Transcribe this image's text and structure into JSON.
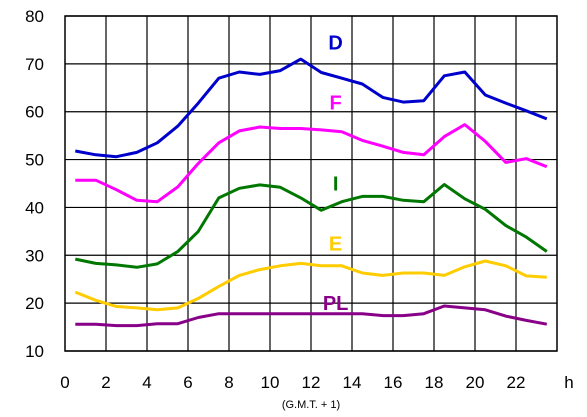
{
  "chart_data": {
    "type": "line",
    "x": [
      0.5,
      1.5,
      2.5,
      3.5,
      4.5,
      5.5,
      6.5,
      7.5,
      8.5,
      9.5,
      10.5,
      11.5,
      12.5,
      13.5,
      14.5,
      15.5,
      16.5,
      17.5,
      18.5,
      19.5,
      20.5,
      21.5,
      22.5,
      23.5
    ],
    "series": [
      {
        "name": "D",
        "color": "#0000cc",
        "values": [
          51.8,
          51.0,
          50.6,
          51.5,
          53.5,
          57.0,
          61.8,
          67.0,
          68.3,
          67.8,
          68.6,
          71.0,
          68.2,
          67.0,
          65.8,
          63.0,
          62.0,
          62.3,
          67.5,
          68.3,
          63.5,
          61.8,
          60.2,
          58.5
        ]
      },
      {
        "name": "F",
        "color": "#ff00ff",
        "values": [
          45.7,
          45.7,
          43.7,
          41.5,
          41.2,
          44.3,
          49.2,
          53.5,
          56.0,
          56.8,
          56.5,
          56.5,
          56.2,
          55.8,
          54.0,
          52.8,
          51.5,
          51.0,
          54.8,
          57.3,
          53.8,
          49.4,
          50.2,
          48.5
        ]
      },
      {
        "name": "I",
        "color": "#007700",
        "values": [
          29.2,
          28.3,
          28.0,
          27.5,
          28.2,
          30.8,
          35.0,
          42.0,
          44.0,
          44.7,
          44.2,
          42.0,
          39.4,
          41.2,
          42.3,
          42.3,
          41.5,
          41.2,
          44.8,
          41.8,
          39.6,
          36.2,
          33.8,
          30.8
        ]
      },
      {
        "name": "E",
        "color": "#ffcc00",
        "values": [
          22.3,
          20.6,
          19.3,
          19.0,
          18.6,
          19.0,
          21.0,
          23.5,
          25.8,
          27.0,
          27.8,
          28.3,
          27.8,
          27.8,
          26.3,
          25.8,
          26.3,
          26.3,
          25.8,
          27.6,
          28.8,
          27.8,
          25.7,
          25.4
        ]
      },
      {
        "name": "PL",
        "color": "#880088",
        "values": [
          15.6,
          15.6,
          15.3,
          15.3,
          15.7,
          15.7,
          17.0,
          17.8,
          17.8,
          17.8,
          17.8,
          17.8,
          17.8,
          17.8,
          17.8,
          17.4,
          17.4,
          17.8,
          19.4,
          19.0,
          18.6,
          17.3,
          16.4,
          15.6
        ]
      }
    ],
    "series_labels": [
      {
        "name": "D",
        "text": "D",
        "x": 13.2,
        "y": 73.0,
        "color": "#0000cc"
      },
      {
        "name": "F",
        "text": "F",
        "x": 13.2,
        "y": 60.5,
        "color": "#ff00ff"
      },
      {
        "name": "I",
        "text": "I",
        "x": 13.2,
        "y": 43.5,
        "color": "#007700"
      },
      {
        "name": "E",
        "text": "E",
        "x": 13.2,
        "y": 31.0,
        "color": "#ffcc00"
      },
      {
        "name": "PL",
        "text": "PL",
        "x": 13.2,
        "y": 18.6,
        "color": "#880088"
      }
    ],
    "xlim": [
      0,
      24
    ],
    "ylim": [
      10,
      80
    ],
    "x_ticks": [
      0,
      2,
      4,
      6,
      8,
      10,
      12,
      14,
      16,
      18,
      20,
      22
    ],
    "x_tick_labels": [
      "0",
      "2",
      "4",
      "6",
      "8",
      "10",
      "12",
      "14",
      "16",
      "18",
      "20",
      "22"
    ],
    "y_ticks": [
      10,
      20,
      30,
      40,
      50,
      60,
      70,
      80
    ],
    "y_tick_labels": [
      "10",
      "20",
      "30",
      "40",
      "50",
      "60",
      "70",
      "80"
    ],
    "x_unit": "h",
    "x_sublabel": "(G.M.T. + 1)",
    "grid": true,
    "title": ""
  }
}
